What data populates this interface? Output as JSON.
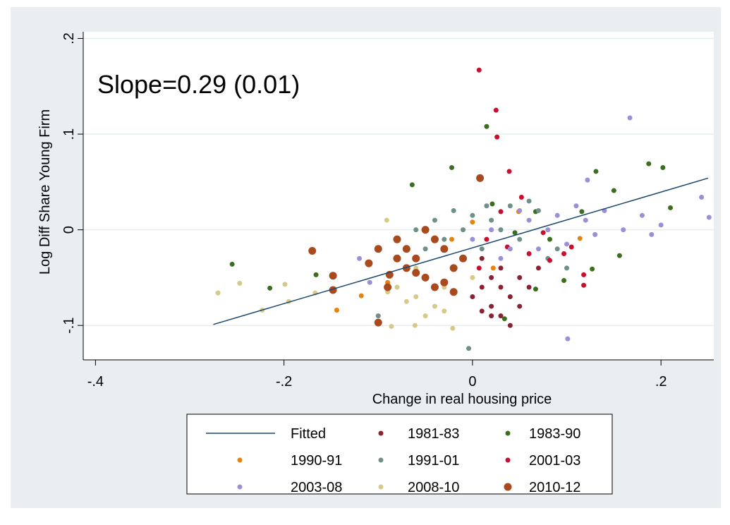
{
  "chart_data": {
    "type": "scatter",
    "annotation": "Slope=0.29 (0.01)",
    "x_label": "Change in real housing price",
    "y_label": "Log Diff Share Young Firm",
    "xlim": [
      -0.413,
      0.256
    ],
    "ylim": [
      -0.136,
      0.207
    ],
    "xticks": [
      {
        "value": -0.4,
        "label": "-.4"
      },
      {
        "value": -0.2,
        "label": "-.2"
      },
      0,
      {
        "value": 0.2,
        "label": ".2"
      }
    ],
    "yticks": [
      {
        "value": -0.1,
        "label": "-.1"
      },
      0,
      {
        "value": 0.1,
        "label": ".1"
      },
      {
        "value": 0.2,
        "label": ".2"
      }
    ],
    "grid": true,
    "legend_position": "bottom",
    "series": [
      {
        "name": "Fitted",
        "color": "#1a476f",
        "marker": "line",
        "x": [
          -0.275,
          0.25
        ],
        "y": [
          -0.099,
          0.054
        ]
      },
      {
        "name": "1981-83",
        "color": "#8b2232",
        "marker_size": 3.5,
        "x": [
          0.01,
          0.02,
          0.03,
          0.04,
          0.02,
          0.03,
          0.05,
          0.01,
          0.04,
          0.06,
          0.0,
          0.02,
          0.05,
          0.03,
          0.07,
          0.01
        ],
        "y": [
          -0.06,
          -0.08,
          -0.09,
          -0.07,
          -0.05,
          -0.04,
          -0.08,
          -0.03,
          -0.1,
          -0.06,
          -0.07,
          -0.09,
          -0.05,
          -0.06,
          -0.04,
          -0.085
        ]
      },
      {
        "name": "1983-90",
        "color": "#3b6e1e",
        "marker_size": 3.5,
        "x": [
          -0.255,
          -0.215,
          -0.166,
          -0.064,
          0.015,
          -0.022,
          0.187,
          0.202,
          0.21,
          0.131,
          0.156,
          0.034,
          0.097,
          0.067,
          0.116,
          0.15,
          0.045,
          0.082,
          0.067,
          0.021,
          0.127
        ],
        "y": [
          -0.036,
          -0.061,
          -0.047,
          0.047,
          0.108,
          0.065,
          0.069,
          0.065,
          0.023,
          0.061,
          -0.027,
          -0.093,
          -0.053,
          0.019,
          0.019,
          0.041,
          -0.003,
          -0.01,
          -0.062,
          0.027,
          -0.041
        ]
      },
      {
        "name": "1990-91",
        "color": "#e8820c",
        "marker_size": 3.5,
        "x": [
          -0.144,
          -0.118,
          0.114,
          0.0,
          -0.022,
          -0.09,
          0.049,
          0.022
        ],
        "y": [
          -0.084,
          -0.069,
          -0.009,
          0.008,
          -0.01,
          -0.055,
          0.019,
          -0.04
        ]
      },
      {
        "name": "1991-01",
        "color": "#6f8f8a",
        "marker_size": 3.5,
        "x": [
          -0.06,
          -0.04,
          -0.02,
          0.0,
          0.02,
          0.04,
          0.06,
          -0.03,
          0.01,
          0.03,
          0.05,
          0.07,
          -0.05,
          0.08,
          0.1,
          -0.08,
          -0.004,
          -0.1,
          0.015,
          -0.01,
          0.09
        ],
        "y": [
          0.0,
          0.01,
          0.02,
          0.015,
          0.01,
          0.025,
          0.03,
          -0.01,
          -0.02,
          0.0,
          -0.01,
          0.02,
          -0.02,
          -0.03,
          -0.04,
          -0.01,
          -0.124,
          -0.09,
          0.025,
          0.0,
          -0.02
        ]
      },
      {
        "name": "2001-03",
        "color": "#c8102e",
        "marker_size": 3.5,
        "x": [
          0.007,
          0.025,
          0.026,
          0.039,
          0.007,
          0.037,
          0.06,
          0.097,
          0.118,
          0.118,
          0.03,
          0.052,
          0.015,
          0.082,
          0.075,
          0.105
        ],
        "y": [
          0.167,
          0.125,
          0.097,
          0.061,
          -0.04,
          -0.018,
          -0.025,
          -0.025,
          -0.058,
          -0.047,
          0.019,
          0.034,
          -0.01,
          -0.032,
          -0.003,
          -0.018
        ]
      },
      {
        "name": "2003-08",
        "color": "#9b8fd8",
        "marker_size": 3.5,
        "x": [
          0.167,
          0.251,
          0.243,
          0.101,
          0.122,
          -0.12,
          -0.109,
          0.0,
          0.02,
          0.04,
          0.06,
          0.08,
          0.1,
          0.12,
          0.14,
          0.16,
          0.18,
          0.2,
          0.05,
          0.03,
          0.07,
          0.09,
          0.13,
          0.19,
          0.11
        ],
        "y": [
          0.117,
          0.013,
          0.034,
          -0.114,
          0.052,
          -0.03,
          -0.055,
          -0.01,
          0.0,
          -0.02,
          0.01,
          0.0,
          -0.015,
          0.01,
          0.02,
          0.0,
          0.015,
          0.005,
          0.02,
          -0.03,
          -0.02,
          0.015,
          -0.005,
          -0.005,
          0.025
        ]
      },
      {
        "name": "2008-10",
        "color": "#d6c98a",
        "marker_size": 3.5,
        "x": [
          -0.27,
          -0.247,
          -0.223,
          -0.199,
          -0.195,
          -0.167,
          -0.091,
          -0.086,
          -0.061,
          -0.021,
          -0.08,
          -0.06,
          -0.05,
          -0.04,
          -0.03,
          -0.07,
          -0.02,
          -0.01,
          -0.05,
          -0.03,
          -0.09,
          -0.06,
          0.0
        ],
        "y": [
          -0.066,
          -0.056,
          -0.084,
          -0.057,
          -0.075,
          -0.066,
          0.01,
          -0.101,
          -0.1,
          -0.103,
          -0.06,
          -0.07,
          -0.05,
          -0.08,
          -0.06,
          -0.075,
          -0.04,
          -0.03,
          -0.09,
          -0.085,
          -0.065,
          -0.04,
          -0.05
        ]
      },
      {
        "name": "2010-12",
        "color": "#a84a1e",
        "marker_size": 5.5,
        "x": [
          -0.17,
          -0.148,
          -0.148,
          -0.1,
          0.008,
          -0.088,
          -0.08,
          -0.07,
          -0.06,
          -0.05,
          -0.04,
          -0.03,
          -0.02,
          -0.05,
          -0.04,
          -0.03,
          -0.06,
          -0.07,
          -0.01,
          -0.02,
          -0.08,
          -0.1,
          -0.11,
          -0.09
        ],
        "y": [
          -0.022,
          -0.048,
          -0.063,
          -0.097,
          0.054,
          -0.047,
          -0.01,
          -0.02,
          -0.03,
          0.0,
          -0.01,
          -0.02,
          -0.04,
          -0.05,
          -0.06,
          -0.055,
          -0.045,
          -0.04,
          -0.03,
          -0.065,
          -0.03,
          -0.02,
          -0.035,
          -0.06
        ]
      }
    ]
  }
}
